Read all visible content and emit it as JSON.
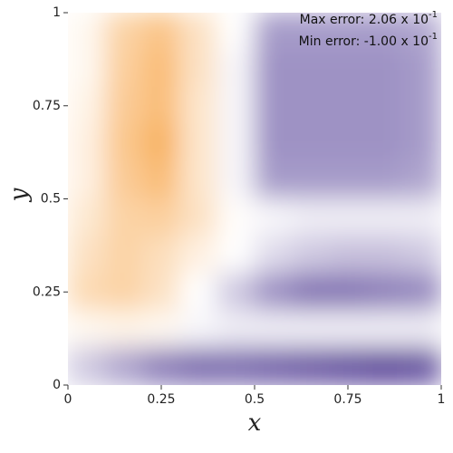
{
  "chart_data": {
    "type": "heatmap",
    "x_label": "x",
    "y_label": "y",
    "xlim": [
      0,
      1
    ],
    "ylim": [
      0,
      1
    ],
    "xticks": [
      0,
      0.25,
      0.5,
      0.75,
      1
    ],
    "yticks": [
      0,
      0.25,
      0.5,
      0.75,
      1
    ],
    "positive_color": "#f8b364",
    "negative_color": "#5e4a9c",
    "annotations": [
      {
        "text": "Max error: 2.06 x 10",
        "sup": "-1"
      },
      {
        "text": "Min error: -1.00 x 10",
        "sup": "-1"
      }
    ],
    "x": [
      0.05,
      0.15,
      0.25,
      0.35,
      0.45,
      0.55,
      0.65,
      0.75,
      0.85,
      0.95
    ],
    "y": [
      0.95,
      0.85,
      0.75,
      0.65,
      0.55,
      0.45,
      0.35,
      0.25,
      0.15,
      0.05
    ],
    "z": [
      [
        0.2,
        1.2,
        1.6,
        0.8,
        0.0,
        -0.55,
        -0.55,
        -0.55,
        -0.55,
        -0.5
      ],
      [
        0.2,
        1.3,
        1.8,
        0.8,
        -0.05,
        -0.6,
        -0.6,
        -0.6,
        -0.6,
        -0.55
      ],
      [
        0.3,
        1.4,
        1.8,
        0.7,
        -0.05,
        -0.6,
        -0.6,
        -0.6,
        -0.6,
        -0.55
      ],
      [
        0.4,
        1.5,
        2.06,
        0.7,
        -0.05,
        -0.6,
        -0.6,
        -0.6,
        -0.6,
        -0.55
      ],
      [
        0.4,
        1.4,
        1.8,
        0.7,
        -0.05,
        -0.55,
        -0.55,
        -0.55,
        -0.55,
        -0.5
      ],
      [
        0.6,
        1.2,
        1.3,
        0.8,
        0.05,
        -0.05,
        -0.1,
        -0.1,
        -0.1,
        -0.1
      ],
      [
        0.8,
        1.2,
        0.9,
        0.4,
        0.0,
        -0.2,
        -0.3,
        -0.35,
        -0.35,
        -0.3
      ],
      [
        1.0,
        1.2,
        0.8,
        0.0,
        -0.3,
        -0.6,
        -0.75,
        -0.75,
        -0.7,
        -0.65
      ],
      [
        0.2,
        0.3,
        0.2,
        -0.05,
        -0.1,
        -0.1,
        -0.1,
        -0.1,
        -0.1,
        -0.1
      ],
      [
        -0.3,
        -0.5,
        -0.7,
        -0.8,
        -0.8,
        -0.85,
        -0.9,
        -0.95,
        -1.0,
        -0.95
      ]
    ]
  }
}
